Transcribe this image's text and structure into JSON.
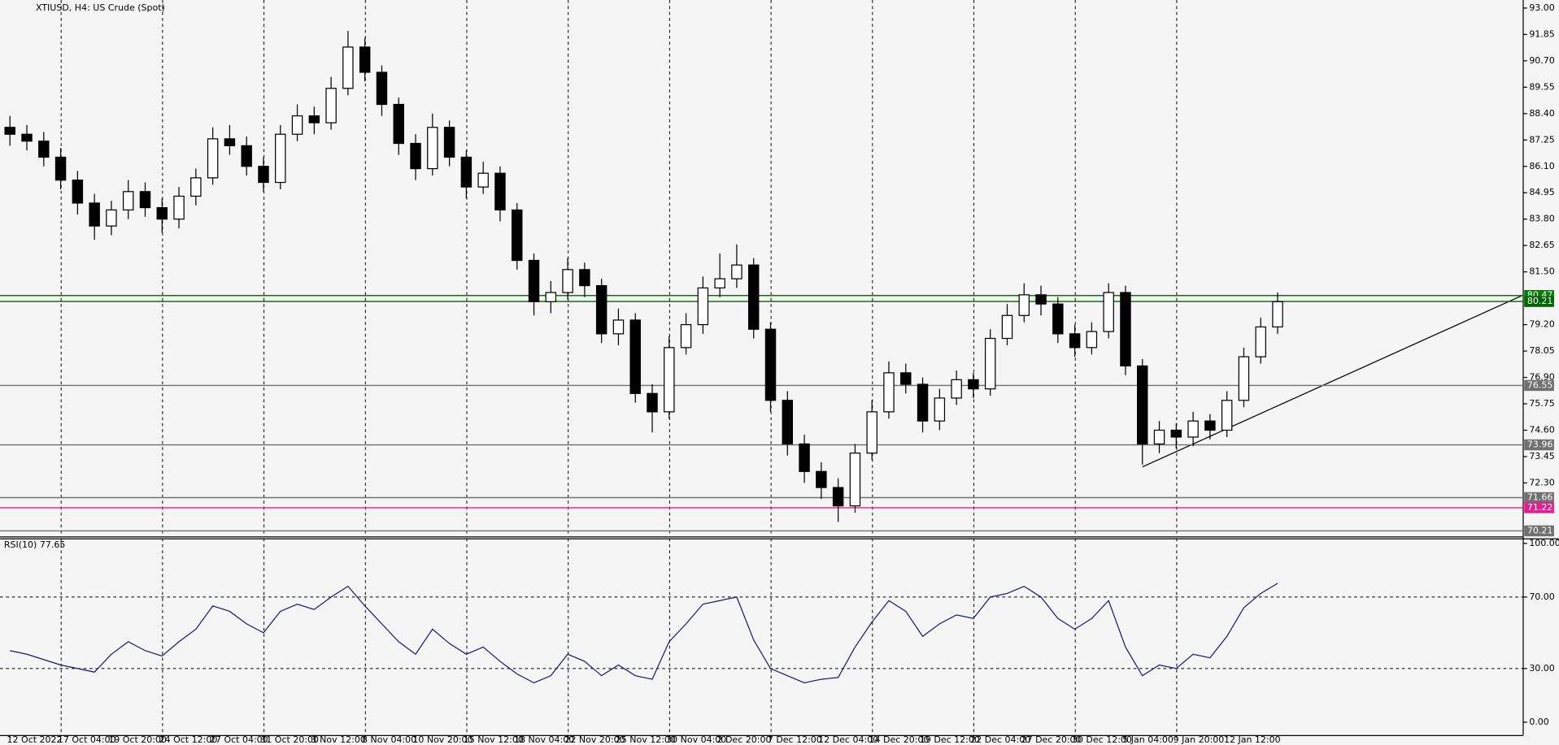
{
  "chart_data": [
    {
      "type": "candlestick",
      "title": "XTIUSD, H4:  US Crude (Spot)",
      "categories": [
        "12 Oct 2022",
        null,
        null,
        "17 Oct 04:00",
        null,
        null,
        "19 Oct 20:00",
        null,
        null,
        "24 Oct 12:00",
        null,
        null,
        "27 Oct 04:00",
        null,
        null,
        "31 Oct 20:00",
        null,
        null,
        "3 Nov 12:00",
        null,
        null,
        "8 Nov 04:00",
        null,
        null,
        "10 Nov 20:00",
        null,
        null,
        "15 Nov 12:00",
        null,
        null,
        "18 Nov 04:00",
        null,
        null,
        "22 Nov 20:00",
        null,
        null,
        "25 Nov 12:00",
        null,
        null,
        "30 Nov 04:00",
        null,
        null,
        "2 Dec 20:00",
        null,
        null,
        "7 Dec 12:00",
        null,
        null,
        "12 Dec 04:00",
        null,
        null,
        "14 Dec 20:00",
        null,
        null,
        "19 Dec 12:00",
        null,
        null,
        "22 Dec 04:00",
        null,
        null,
        "27 Dec 20:00",
        null,
        null,
        "30 Dec 12:00",
        null,
        null,
        "5 Jan 04:00",
        null,
        null,
        "9 Jan 20:00",
        null,
        null,
        "12 Jan 12:00",
        null,
        null,
        null
      ],
      "open": [
        87.8,
        87.5,
        87.2,
        86.5,
        85.5,
        84.5,
        83.5,
        84.2,
        85.0,
        84.3,
        83.8,
        84.8,
        85.6,
        87.3,
        87.0,
        86.1,
        85.4,
        87.5,
        88.3,
        88.0,
        89.5,
        91.3,
        90.2,
        88.8,
        87.1,
        86.0,
        87.8,
        86.5,
        85.2,
        85.8,
        84.2,
        82.0,
        80.2,
        80.6,
        81.6,
        80.9,
        78.8,
        79.4,
        76.2,
        75.4,
        78.2,
        79.2,
        80.8,
        81.2,
        81.8,
        79.0,
        75.9,
        74.0,
        72.8,
        72.1,
        71.3,
        73.6,
        75.4,
        77.1,
        76.6,
        75.0,
        76.0,
        76.8,
        76.4,
        78.6,
        79.6,
        80.5,
        80.1,
        78.8,
        78.2,
        78.9,
        80.6,
        77.4,
        74.0,
        74.6,
        74.3,
        75.0,
        74.6,
        75.9,
        77.8,
        79.1
      ],
      "high": [
        88.3,
        87.9,
        87.6,
        86.9,
        85.9,
        84.9,
        84.6,
        85.5,
        85.4,
        84.7,
        85.2,
        86.0,
        87.8,
        87.9,
        87.4,
        86.5,
        87.9,
        88.8,
        88.7,
        90.0,
        92.0,
        91.7,
        90.5,
        89.1,
        87.5,
        88.4,
        88.1,
        86.8,
        86.3,
        86.1,
        84.5,
        82.3,
        81.1,
        82.1,
        81.9,
        81.2,
        79.9,
        79.7,
        76.6,
        78.7,
        79.7,
        81.3,
        82.3,
        82.7,
        82.1,
        79.3,
        76.3,
        74.4,
        73.2,
        72.5,
        74.0,
        75.9,
        77.6,
        77.5,
        76.9,
        76.4,
        77.2,
        77.1,
        79.0,
        80.1,
        81.0,
        80.9,
        80.4,
        79.2,
        79.3,
        81.0,
        80.9,
        77.7,
        75.0,
        74.9,
        75.4,
        75.3,
        76.3,
        78.2,
        79.5,
        80.6
      ],
      "low": [
        87.0,
        86.8,
        86.1,
        85.1,
        84.0,
        82.9,
        83.1,
        83.8,
        83.9,
        83.2,
        83.4,
        84.4,
        85.3,
        86.6,
        85.7,
        85.0,
        85.1,
        87.2,
        87.5,
        87.7,
        89.2,
        89.8,
        88.3,
        86.6,
        85.5,
        85.7,
        86.1,
        84.7,
        84.9,
        83.7,
        81.6,
        79.6,
        79.7,
        80.3,
        80.4,
        78.4,
        78.3,
        75.8,
        74.5,
        75.1,
        77.9,
        78.8,
        80.4,
        80.8,
        78.6,
        75.4,
        73.5,
        72.3,
        71.6,
        70.6,
        71.0,
        73.3,
        75.1,
        76.2,
        74.5,
        74.6,
        75.7,
        76.0,
        76.1,
        78.3,
        79.3,
        79.6,
        78.4,
        77.8,
        77.9,
        78.6,
        77.0,
        73.1,
        73.6,
        73.8,
        73.9,
        74.2,
        74.3,
        75.6,
        77.5,
        78.8
      ],
      "close": [
        87.5,
        87.2,
        86.5,
        85.5,
        84.5,
        83.5,
        84.2,
        85.0,
        84.3,
        83.8,
        84.8,
        85.6,
        87.3,
        87.0,
        86.1,
        85.4,
        87.5,
        88.3,
        88.0,
        89.5,
        91.3,
        90.2,
        88.8,
        87.1,
        86.0,
        87.8,
        86.5,
        85.2,
        85.8,
        84.2,
        82.0,
        80.2,
        80.6,
        81.6,
        80.9,
        78.8,
        79.4,
        76.2,
        75.4,
        78.2,
        79.2,
        80.8,
        81.2,
        81.8,
        79.0,
        75.9,
        74.0,
        72.8,
        72.1,
        71.3,
        73.6,
        75.4,
        77.1,
        76.6,
        75.0,
        76.0,
        76.8,
        76.4,
        78.6,
        79.6,
        80.5,
        80.1,
        78.8,
        78.2,
        78.9,
        80.6,
        77.4,
        74.0,
        74.6,
        74.3,
        75.0,
        74.6,
        75.9,
        77.8,
        79.1,
        80.2
      ],
      "up_color": "#ffffff",
      "down_color": "#000000",
      "ylim": [
        69.97,
        93.35
      ],
      "yticks": [
        {
          "value": 93,
          "label": "93.00"
        },
        91.85,
        {
          "value": 90.7,
          "label": "90.70"
        },
        89.55,
        {
          "value": 88.4,
          "label": "88.40"
        },
        87.25,
        {
          "value": 86.1,
          "label": "86.10"
        },
        84.95,
        {
          "value": 83.8,
          "label": "83.80"
        },
        82.65,
        {
          "value": 81.5,
          "label": "81.50"
        },
        {
          "value": 79.2,
          "label": "79.20"
        },
        78.05,
        {
          "value": 76.9,
          "label": "76.90"
        },
        75.75,
        {
          "value": 74.6,
          "label": "74.60"
        },
        73.45,
        {
          "value": 72.3,
          "label": "72.30"
        }
      ],
      "levels": [
        {
          "value": 80.47,
          "color": "#008000"
        },
        {
          "value": 80.21,
          "color": "#006400"
        },
        {
          "value": 76.55,
          "color": "#707070"
        },
        {
          "value": 73.96,
          "color": "#707070"
        },
        {
          "value": 71.66,
          "color": "#707070"
        },
        {
          "value": 71.22,
          "color": "#e0208c"
        },
        {
          "value": 70.21,
          "color": "#707070"
        }
      ]
    },
    {
      "type": "line",
      "title": "RSI(10) 77.65",
      "color": "#191970",
      "values": [
        40,
        38,
        35,
        32,
        30,
        28,
        38,
        45,
        40,
        37,
        45,
        52,
        65,
        62,
        55,
        50,
        62,
        66,
        63,
        70,
        76,
        65,
        55,
        45,
        38,
        52,
        44,
        38,
        42,
        34,
        27,
        22,
        26,
        38,
        34,
        26,
        32,
        26,
        24,
        45,
        55,
        66,
        68,
        70,
        46,
        30,
        26,
        22,
        24,
        25,
        42,
        56,
        68,
        62,
        48,
        55,
        60,
        58,
        70,
        72,
        76,
        70,
        58,
        52,
        58,
        68,
        42,
        26,
        32,
        30,
        38,
        36,
        48,
        64,
        72,
        77.65
      ],
      "ylim": [
        -7.2,
        102.8
      ],
      "yticks": [
        {
          "value": 100,
          "label": "100.00"
        },
        {
          "value": 70,
          "label": "70.00"
        },
        {
          "value": 30,
          "label": "30.00"
        },
        {
          "value": 0,
          "label": "0.00"
        }
      ]
    }
  ]
}
